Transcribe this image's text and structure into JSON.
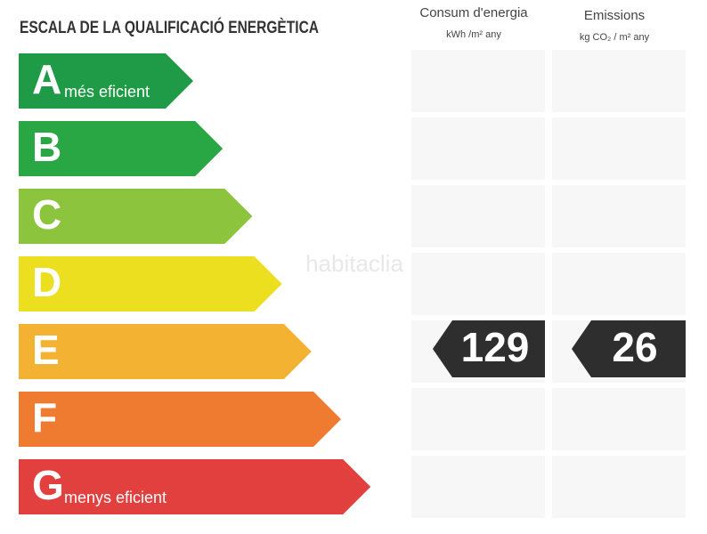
{
  "header": {
    "title": "ESCALA DE LA QUALIFICACIÓ ENERGÈTICA",
    "columns": [
      {
        "title": "Consum d'energia",
        "unit": "kWh /m² any"
      },
      {
        "title": "Emissions",
        "unit": "kg CO₂ / m² any"
      }
    ]
  },
  "watermark": "habitaclia",
  "classes": [
    {
      "letter": "A",
      "label": "més eficient",
      "color": "#1f9a47"
    },
    {
      "letter": "B",
      "color": "#2aa745"
    },
    {
      "letter": "C",
      "color": "#8cc43e"
    },
    {
      "letter": "D",
      "color": "#ecdf1f"
    },
    {
      "letter": "E",
      "color": "#f4b233",
      "consum": "129",
      "emissions": "26"
    },
    {
      "letter": "F",
      "color": "#ee7b30"
    },
    {
      "letter": "G",
      "label": "menys eficient",
      "color": "#e2403f"
    }
  ]
}
